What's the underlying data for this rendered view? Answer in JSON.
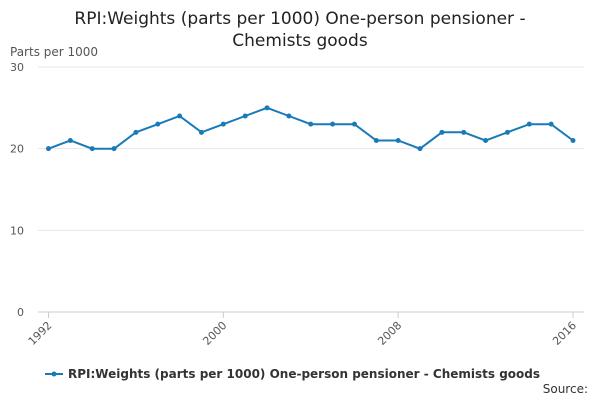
{
  "chart_data": {
    "type": "line",
    "title": "RPI:Weights (parts per 1000) One-person pensioner - Chemists goods",
    "ylabel": "Parts per 1000",
    "xlabel": "",
    "x": [
      1992,
      1993,
      1994,
      1995,
      1996,
      1997,
      1998,
      1999,
      2000,
      2001,
      2002,
      2003,
      2004,
      2005,
      2006,
      2007,
      2008,
      2009,
      2010,
      2011,
      2012,
      2013,
      2014,
      2015,
      2016
    ],
    "x_ticks": [
      "1992",
      "2000",
      "2008",
      "2016"
    ],
    "y_ticks": [
      "0",
      "10",
      "20",
      "30"
    ],
    "ylim": [
      0,
      30
    ],
    "grid": true,
    "legend": "bottom",
    "series": [
      {
        "name": "RPI:Weights (parts per 1000) One-person pensioner - Chemists goods",
        "color": "#1a7ab8",
        "values": [
          20,
          21,
          20,
          20,
          22,
          23,
          24,
          22,
          23,
          24,
          25,
          24,
          23,
          23,
          23,
          21,
          21,
          20,
          22,
          22,
          21,
          22,
          23,
          23,
          21
        ]
      }
    ]
  },
  "source_label": "Source:"
}
